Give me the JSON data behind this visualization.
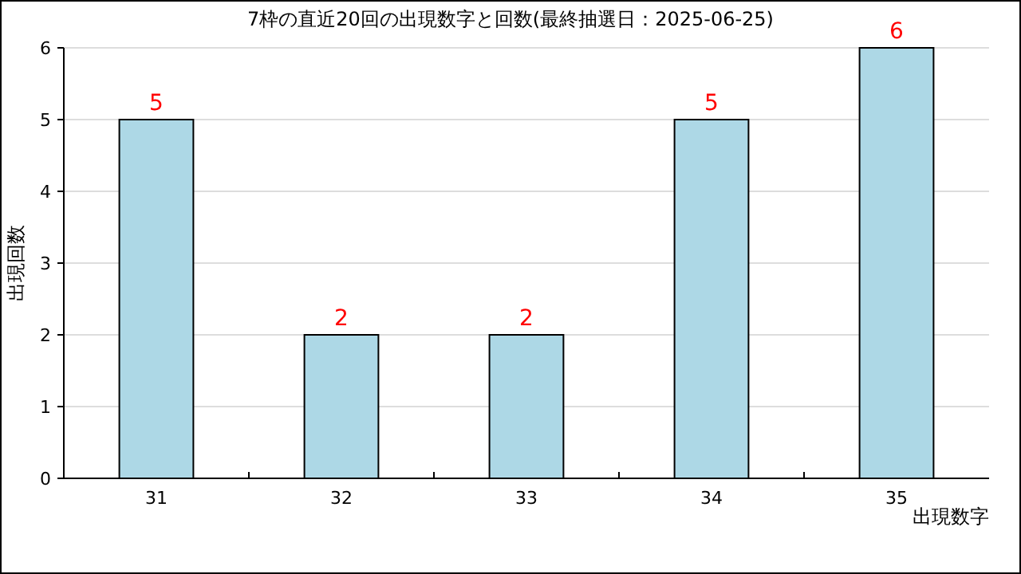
{
  "chart_data": {
    "type": "bar",
    "title": "7枠の直近20回の出現数字と回数(最終抽選日：2025-06-25)",
    "xlabel": "出現数字",
    "ylabel": "出現回数",
    "categories": [
      "31",
      "32",
      "33",
      "34",
      "35"
    ],
    "values": [
      5,
      2,
      2,
      5,
      6
    ],
    "color": "#add8e6",
    "ylim": [
      0,
      6
    ],
    "yticks": [
      0,
      1,
      2,
      3,
      4,
      5,
      6
    ],
    "grid": "y",
    "data_labels": true
  }
}
